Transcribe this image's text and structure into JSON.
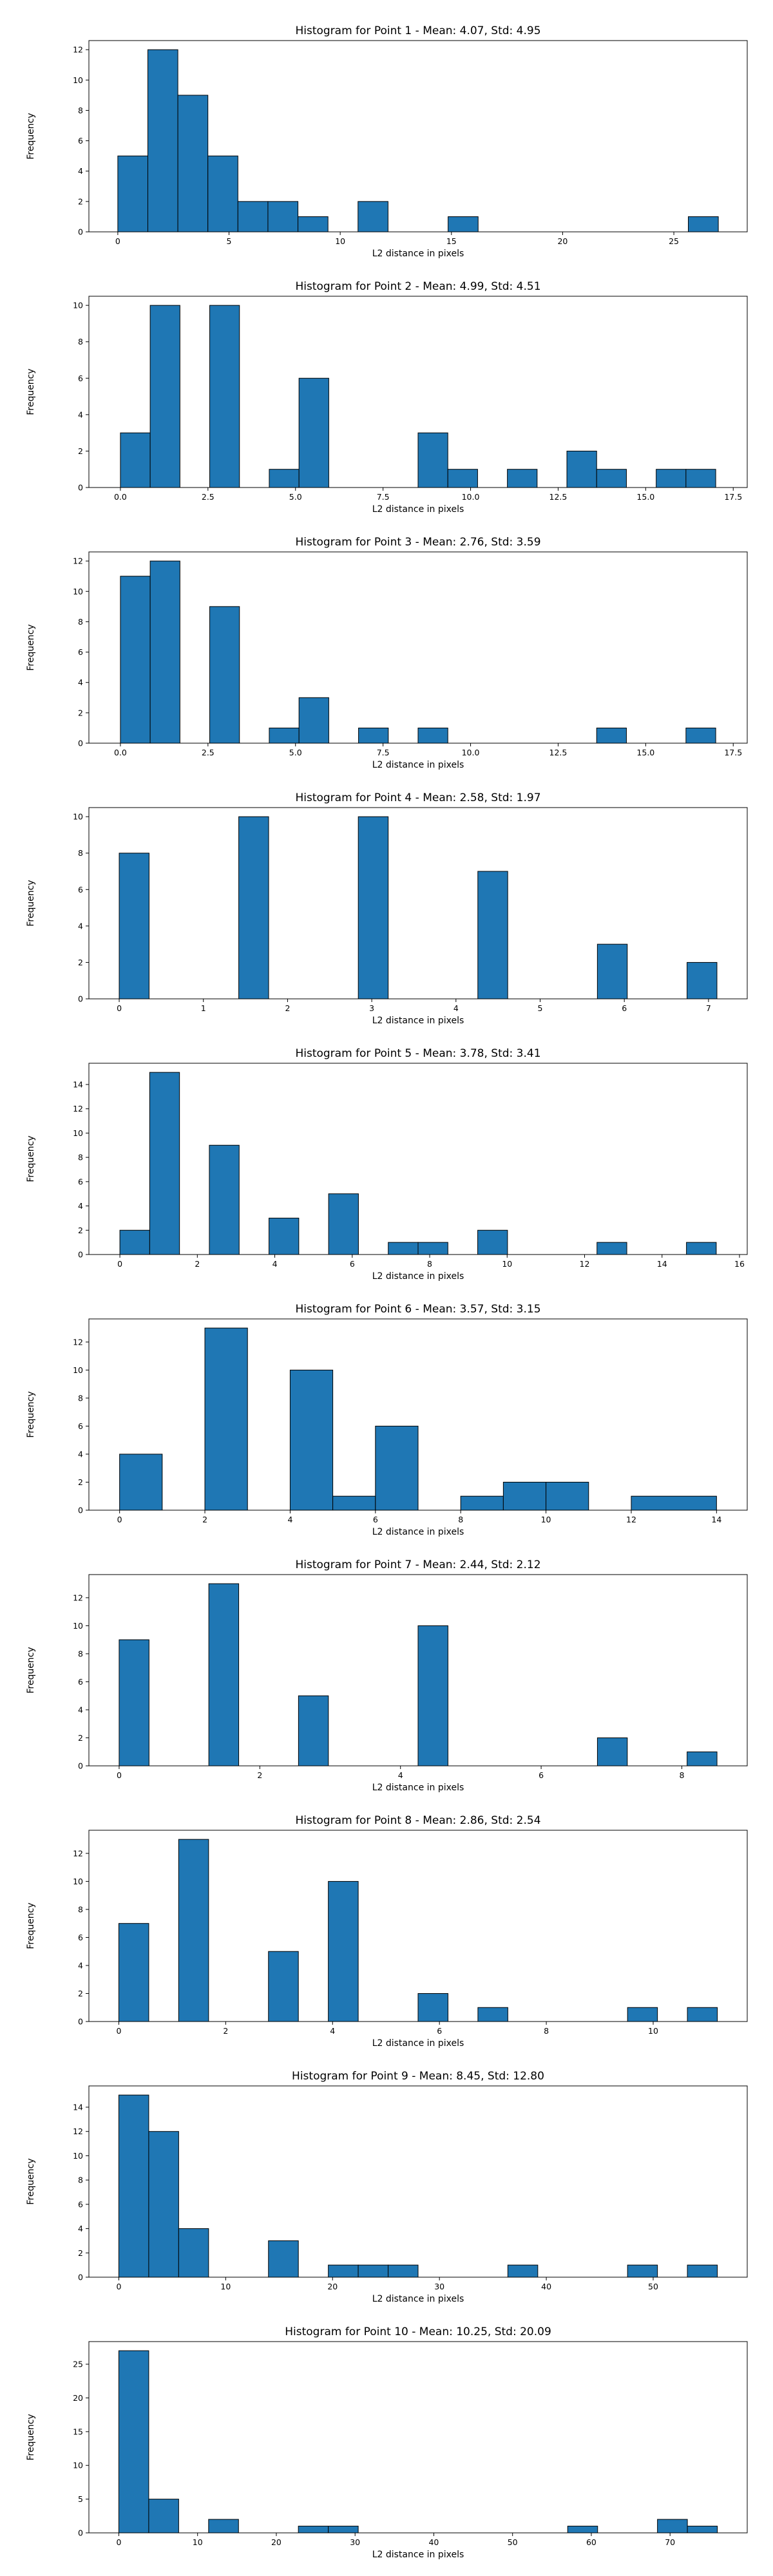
{
  "colors": {
    "bar_fill": "#1f77b4",
    "bar_edge": "#000000",
    "background": "#ffffff"
  },
  "chart_data": [
    {
      "type": "bar",
      "title": "Histogram for Point 1 - Mean: 4.07, Std: 4.95",
      "xlabel": "L2 distance in pixels",
      "ylabel": "Frequency",
      "xlim": [
        -1.3,
        28.3
      ],
      "ylim": [
        0,
        12.6
      ],
      "grid": false,
      "xticks": [
        0,
        5,
        10,
        15,
        20,
        25
      ],
      "xtick_labels": [
        "0",
        "5",
        "10",
        "15",
        "20",
        "25"
      ],
      "yticks": [
        0,
        2,
        4,
        6,
        8,
        10,
        12
      ],
      "ytick_labels": [
        "0",
        "2",
        "4",
        "6",
        "8",
        "10",
        "12"
      ],
      "bins": [
        [
          0.0,
          1.35,
          5
        ],
        [
          1.35,
          2.7,
          12
        ],
        [
          2.7,
          4.05,
          9
        ],
        [
          4.05,
          5.4,
          5
        ],
        [
          5.4,
          6.75,
          2
        ],
        [
          6.75,
          8.1,
          2
        ],
        [
          8.1,
          9.45,
          1
        ],
        [
          10.8,
          12.15,
          2
        ],
        [
          14.85,
          16.2,
          1
        ],
        [
          25.65,
          27.0,
          1
        ]
      ]
    },
    {
      "type": "bar",
      "title": "Histogram for Point 2 - Mean: 4.99, Std: 4.51",
      "xlabel": "L2 distance in pixels",
      "ylabel": "Frequency",
      "xlim": [
        -0.9,
        17.9
      ],
      "ylim": [
        0,
        10.5
      ],
      "grid": false,
      "xticks": [
        0,
        2.5,
        5,
        7.5,
        10,
        12.5,
        15,
        17.5
      ],
      "xtick_labels": [
        "0.0",
        "2.5",
        "5.0",
        "7.5",
        "10.0",
        "12.5",
        "15.0",
        "17.5"
      ],
      "yticks": [
        0,
        2,
        4,
        6,
        8,
        10
      ],
      "ytick_labels": [
        "0",
        "2",
        "4",
        "6",
        "8",
        "10"
      ],
      "bins": [
        [
          0.0,
          0.85,
          3
        ],
        [
          0.85,
          1.7,
          10
        ],
        [
          2.55,
          3.4,
          10
        ],
        [
          4.25,
          5.1,
          1
        ],
        [
          5.1,
          5.95,
          6
        ],
        [
          8.5,
          9.35,
          3
        ],
        [
          9.35,
          10.2,
          1
        ],
        [
          11.05,
          11.9,
          1
        ],
        [
          12.75,
          13.6,
          2
        ],
        [
          13.6,
          14.45,
          1
        ],
        [
          15.3,
          16.15,
          1
        ],
        [
          16.15,
          17.0,
          1
        ]
      ]
    },
    {
      "type": "bar",
      "title": "Histogram for Point 3 - Mean: 2.76, Std: 3.59",
      "xlabel": "L2 distance in pixels",
      "ylabel": "Frequency",
      "xlim": [
        -0.9,
        17.9
      ],
      "ylim": [
        0,
        12.6
      ],
      "grid": false,
      "xticks": [
        0,
        2.5,
        5,
        7.5,
        10,
        12.5,
        15,
        17.5
      ],
      "xtick_labels": [
        "0.0",
        "2.5",
        "5.0",
        "7.5",
        "10.0",
        "12.5",
        "15.0",
        "17.5"
      ],
      "yticks": [
        0,
        2,
        4,
        6,
        8,
        10,
        12
      ],
      "ytick_labels": [
        "0",
        "2",
        "4",
        "6",
        "8",
        "10",
        "12"
      ],
      "bins": [
        [
          0.0,
          0.85,
          11
        ],
        [
          0.85,
          1.7,
          12
        ],
        [
          2.55,
          3.4,
          9
        ],
        [
          4.25,
          5.1,
          1
        ],
        [
          5.1,
          5.95,
          3
        ],
        [
          6.8,
          7.65,
          1
        ],
        [
          8.5,
          9.35,
          1
        ],
        [
          13.6,
          14.45,
          1
        ],
        [
          16.15,
          17.0,
          1
        ]
      ]
    },
    {
      "type": "bar",
      "title": "Histogram for Point 4 - Mean: 2.58, Std: 1.97",
      "xlabel": "L2 distance in pixels",
      "ylabel": "Frequency",
      "xlim": [
        -0.36,
        7.46
      ],
      "ylim": [
        0,
        10.5
      ],
      "grid": false,
      "xticks": [
        0,
        1,
        2,
        3,
        4,
        5,
        6,
        7
      ],
      "xtick_labels": [
        "0",
        "1",
        "2",
        "3",
        "4",
        "5",
        "6",
        "7"
      ],
      "yticks": [
        0,
        2,
        4,
        6,
        8,
        10
      ],
      "ytick_labels": [
        "0",
        "2",
        "4",
        "6",
        "8",
        "10"
      ],
      "bins": [
        [
          0.0,
          0.355,
          8
        ],
        [
          1.42,
          1.775,
          10
        ],
        [
          2.84,
          3.195,
          10
        ],
        [
          4.26,
          4.615,
          7
        ],
        [
          5.68,
          6.035,
          3
        ],
        [
          6.745,
          7.1,
          2
        ]
      ]
    },
    {
      "type": "bar",
      "title": "Histogram for Point 5 - Mean: 3.78, Std: 3.41",
      "xlabel": "L2 distance in pixels",
      "ylabel": "Frequency",
      "xlim": [
        -0.8,
        16.2
      ],
      "ylim": [
        0,
        15.75
      ],
      "grid": false,
      "xticks": [
        0,
        2,
        4,
        6,
        8,
        10,
        12,
        14,
        16
      ],
      "xtick_labels": [
        "0",
        "2",
        "4",
        "6",
        "8",
        "10",
        "12",
        "14",
        "16"
      ],
      "yticks": [
        0,
        2,
        4,
        6,
        8,
        10,
        12,
        14
      ],
      "ytick_labels": [
        "0",
        "2",
        "4",
        "6",
        "8",
        "10",
        "12",
        "14"
      ],
      "bins": [
        [
          0.0,
          0.77,
          2
        ],
        [
          0.77,
          1.54,
          15
        ],
        [
          2.31,
          3.08,
          9
        ],
        [
          3.85,
          4.62,
          3
        ],
        [
          5.39,
          6.16,
          5
        ],
        [
          6.93,
          7.7,
          1
        ],
        [
          7.7,
          8.47,
          1
        ],
        [
          9.24,
          10.01,
          2
        ],
        [
          12.32,
          13.09,
          1
        ],
        [
          14.63,
          15.4,
          1
        ]
      ]
    },
    {
      "type": "bar",
      "title": "Histogram for Point 6 - Mean: 3.57, Std: 3.15",
      "xlabel": "L2 distance in pixels",
      "ylabel": "Frequency",
      "xlim": [
        -0.72,
        14.72
      ],
      "ylim": [
        0,
        13.65
      ],
      "grid": false,
      "xticks": [
        0,
        2,
        4,
        6,
        8,
        10,
        12,
        14
      ],
      "xtick_labels": [
        "0",
        "2",
        "4",
        "6",
        "8",
        "10",
        "12",
        "14"
      ],
      "yticks": [
        0,
        2,
        4,
        6,
        8,
        10,
        12
      ],
      "ytick_labels": [
        "0",
        "2",
        "4",
        "6",
        "8",
        "10",
        "12"
      ],
      "bins": [
        [
          0.0,
          1.0,
          4
        ],
        [
          2.0,
          3.0,
          13
        ],
        [
          4.0,
          5.0,
          10
        ],
        [
          5.0,
          6.0,
          1
        ],
        [
          6.0,
          7.0,
          6
        ],
        [
          8.0,
          9.0,
          1
        ],
        [
          9.0,
          10.0,
          2
        ],
        [
          10.0,
          11.0,
          2
        ],
        [
          12.0,
          14.0,
          1
        ]
      ]
    },
    {
      "type": "bar",
      "title": "Histogram for Point 7 - Mean: 2.44, Std: 2.12",
      "xlabel": "L2 distance in pixels",
      "ylabel": "Frequency",
      "xlim": [
        -0.43,
        8.93
      ],
      "ylim": [
        0,
        13.65
      ],
      "grid": false,
      "xticks": [
        0,
        2,
        4,
        6,
        8
      ],
      "xtick_labels": [
        "0",
        "2",
        "4",
        "6",
        "8"
      ],
      "yticks": [
        0,
        2,
        4,
        6,
        8,
        10,
        12
      ],
      "ytick_labels": [
        "0",
        "2",
        "4",
        "6",
        "8",
        "10",
        "12"
      ],
      "bins": [
        [
          0.0,
          0.425,
          9
        ],
        [
          1.275,
          1.7,
          13
        ],
        [
          2.55,
          2.975,
          5
        ],
        [
          4.25,
          4.675,
          10
        ],
        [
          6.8,
          7.225,
          2
        ],
        [
          8.075,
          8.5,
          1
        ]
      ]
    },
    {
      "type": "bar",
      "title": "Histogram for Point 8 - Mean: 2.86, Std: 2.54",
      "xlabel": "L2 distance in pixels",
      "ylabel": "Frequency",
      "xlim": [
        -0.56,
        11.76
      ],
      "ylim": [
        0,
        13.65
      ],
      "grid": false,
      "xticks": [
        0,
        2,
        4,
        6,
        8,
        10
      ],
      "xtick_labels": [
        "0",
        "2",
        "4",
        "6",
        "8",
        "10"
      ],
      "yticks": [
        0,
        2,
        4,
        6,
        8,
        10,
        12
      ],
      "ytick_labels": [
        "0",
        "2",
        "4",
        "6",
        "8",
        "10",
        "12"
      ],
      "bins": [
        [
          0.0,
          0.56,
          7
        ],
        [
          1.12,
          1.68,
          13
        ],
        [
          2.8,
          3.36,
          5
        ],
        [
          3.92,
          4.48,
          10
        ],
        [
          5.6,
          6.16,
          2
        ],
        [
          6.72,
          7.28,
          1
        ],
        [
          9.52,
          10.08,
          1
        ],
        [
          10.64,
          11.2,
          1
        ]
      ]
    },
    {
      "type": "bar",
      "title": "Histogram for Point 9 - Mean: 8.45, Std: 12.80",
      "xlabel": "L2 distance in pixels",
      "ylabel": "Frequency",
      "xlim": [
        -2.8,
        58.8
      ],
      "ylim": [
        0,
        15.75
      ],
      "grid": false,
      "xticks": [
        0,
        10,
        20,
        30,
        40,
        50
      ],
      "xtick_labels": [
        "0",
        "10",
        "20",
        "30",
        "40",
        "50"
      ],
      "yticks": [
        0,
        2,
        4,
        6,
        8,
        10,
        12,
        14
      ],
      "ytick_labels": [
        "0",
        "2",
        "4",
        "6",
        "8",
        "10",
        "12",
        "14"
      ],
      "bins": [
        [
          0.0,
          2.8,
          15
        ],
        [
          2.8,
          5.6,
          12
        ],
        [
          5.6,
          8.4,
          4
        ],
        [
          14.0,
          16.8,
          3
        ],
        [
          19.6,
          22.4,
          1
        ],
        [
          22.4,
          25.2,
          1
        ],
        [
          25.2,
          28.0,
          1
        ],
        [
          36.4,
          39.2,
          1
        ],
        [
          47.6,
          50.4,
          1
        ],
        [
          53.2,
          56.0,
          1
        ]
      ]
    },
    {
      "type": "bar",
      "title": "Histogram for Point 10 - Mean: 10.25, Std: 20.09",
      "xlabel": "L2 distance in pixels",
      "ylabel": "Frequency",
      "xlim": [
        -3.8,
        79.8
      ],
      "ylim": [
        0,
        28.35
      ],
      "grid": false,
      "xticks": [
        0,
        10,
        20,
        30,
        40,
        50,
        60,
        70
      ],
      "xtick_labels": [
        "0",
        "10",
        "20",
        "30",
        "40",
        "50",
        "60",
        "70"
      ],
      "yticks": [
        0,
        5,
        10,
        15,
        20,
        25
      ],
      "ytick_labels": [
        "0",
        "5",
        "10",
        "15",
        "20",
        "25"
      ],
      "bins": [
        [
          0.0,
          3.8,
          27
        ],
        [
          3.8,
          7.6,
          5
        ],
        [
          11.4,
          15.2,
          2
        ],
        [
          22.8,
          26.6,
          1
        ],
        [
          26.6,
          30.4,
          1
        ],
        [
          57.0,
          60.8,
          1
        ],
        [
          68.4,
          72.2,
          2
        ],
        [
          72.2,
          76.0,
          1
        ]
      ]
    }
  ]
}
